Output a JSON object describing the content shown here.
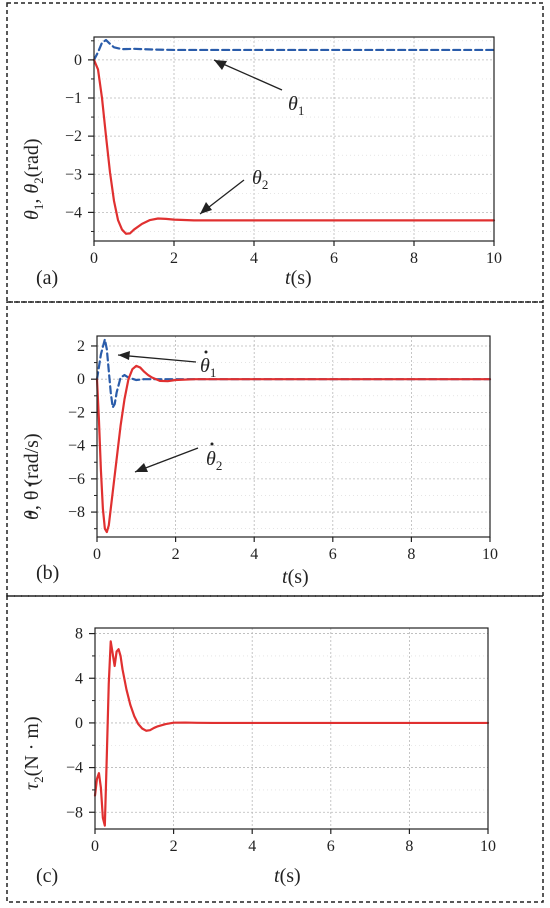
{
  "chart_data": [
    {
      "type": "line",
      "panel_label": "(a)",
      "ylabel_parts": [
        "θ",
        "1",
        ", θ",
        "2",
        "(rad)"
      ],
      "xlabel_parts": [
        "t",
        "(s)"
      ],
      "xlim": [
        0,
        10
      ],
      "ylim": [
        -4.75,
        0.6
      ],
      "xticks": [
        0,
        2,
        4,
        6,
        8,
        10
      ],
      "yticks": [
        0,
        -1,
        -2,
        -3,
        -4
      ],
      "grid": true,
      "annotations": [
        {
          "text": "θ",
          "sub": "1"
        },
        {
          "text": "θ",
          "sub": "2"
        }
      ],
      "series": [
        {
          "color": "#2a5caa",
          "dash": true,
          "x": [
            0,
            0.1,
            0.2,
            0.3,
            0.4,
            0.5,
            0.7,
            1.0,
            1.5,
            2.0,
            3.0,
            5.0,
            10.0
          ],
          "y": [
            0,
            0.2,
            0.45,
            0.52,
            0.42,
            0.33,
            0.28,
            0.29,
            0.27,
            0.26,
            0.26,
            0.26,
            0.26
          ]
        },
        {
          "color": "#e03030",
          "dash": false,
          "x": [
            0,
            0.1,
            0.2,
            0.3,
            0.4,
            0.5,
            0.6,
            0.7,
            0.8,
            0.9,
            1.0,
            1.2,
            1.4,
            1.6,
            1.8,
            2.0,
            2.5,
            3.0,
            4.0,
            6.0,
            8.0,
            10.0
          ],
          "y": [
            0,
            -0.25,
            -1.0,
            -2.0,
            -2.95,
            -3.7,
            -4.2,
            -4.45,
            -4.56,
            -4.55,
            -4.45,
            -4.3,
            -4.2,
            -4.16,
            -4.17,
            -4.19,
            -4.21,
            -4.21,
            -4.21,
            -4.21,
            -4.21,
            -4.21
          ]
        }
      ]
    },
    {
      "type": "line",
      "panel_label": "(b)",
      "ylabel_parts": [
        "θ",
        "",
        ", θ",
        "",
        " (rad/s)"
      ],
      "xlabel_parts": [
        "t",
        "(s)"
      ],
      "xlim": [
        0,
        10
      ],
      "ylim": [
        -9.5,
        2.6
      ],
      "xticks": [
        0,
        2,
        4,
        6,
        8,
        10
      ],
      "yticks": [
        2,
        0,
        -2,
        -4,
        -6,
        -8
      ],
      "grid": true,
      "annotations": [
        {
          "text": "θ",
          "sub": "1"
        },
        {
          "text": "θ",
          "sub": "2"
        }
      ],
      "series": [
        {
          "color": "#2a5caa",
          "dash": true,
          "x": [
            0,
            0.1,
            0.2,
            0.25,
            0.3,
            0.35,
            0.4,
            0.45,
            0.5,
            0.6,
            0.7,
            0.8,
            1.0,
            1.2,
            1.5,
            2.0,
            3.0,
            10.0
          ],
          "y": [
            0,
            1.5,
            2.4,
            1.8,
            0.5,
            -0.8,
            -1.7,
            -1.5,
            -0.8,
            0.1,
            0.25,
            0.1,
            -0.05,
            0,
            0,
            0,
            0,
            0
          ],
          "label": "θ̇1"
        },
        {
          "color": "#e03030",
          "dash": false,
          "x": [
            0,
            0.05,
            0.1,
            0.15,
            0.2,
            0.25,
            0.3,
            0.35,
            0.4,
            0.5,
            0.6,
            0.7,
            0.8,
            0.9,
            1.0,
            1.1,
            1.2,
            1.3,
            1.4,
            1.6,
            1.8,
            2.0,
            2.5,
            3.0,
            10.0
          ],
          "y": [
            0,
            -2.5,
            -5.5,
            -7.8,
            -9.0,
            -9.2,
            -8.8,
            -7.8,
            -6.8,
            -4.8,
            -2.8,
            -1.2,
            0.0,
            0.6,
            0.8,
            0.7,
            0.45,
            0.25,
            0.1,
            -0.1,
            -0.12,
            -0.05,
            0,
            0,
            0
          ]
        }
      ]
    },
    {
      "type": "line",
      "panel_label": "(c)",
      "ylabel_parts": [
        "τ",
        "2",
        "(N · m)"
      ],
      "xlabel_parts": [
        "t",
        "(s)"
      ],
      "xlim": [
        0,
        10
      ],
      "ylim": [
        -9.5,
        8.5
      ],
      "xticks": [
        0,
        2,
        4,
        6,
        8,
        10
      ],
      "yticks": [
        8,
        4,
        0,
        -4,
        -8
      ],
      "grid": true,
      "series": [
        {
          "color": "#e03030",
          "dash": false,
          "x": [
            0,
            0.05,
            0.1,
            0.15,
            0.2,
            0.25,
            0.3,
            0.35,
            0.4,
            0.45,
            0.5,
            0.55,
            0.6,
            0.65,
            0.7,
            0.8,
            0.9,
            1.0,
            1.1,
            1.2,
            1.3,
            1.4,
            1.5,
            1.6,
            1.8,
            2.0,
            2.3,
            2.6,
            3.0,
            5.0,
            10.0
          ],
          "y": [
            -6.5,
            -5.0,
            -4.5,
            -5.8,
            -8.5,
            -9.2,
            -3.0,
            3.5,
            7.3,
            6.2,
            5.1,
            6.4,
            6.6,
            6.0,
            4.8,
            3.0,
            1.6,
            0.6,
            -0.1,
            -0.5,
            -0.7,
            -0.65,
            -0.45,
            -0.3,
            -0.1,
            0.02,
            0.03,
            0.01,
            0,
            0,
            0
          ]
        }
      ]
    }
  ]
}
